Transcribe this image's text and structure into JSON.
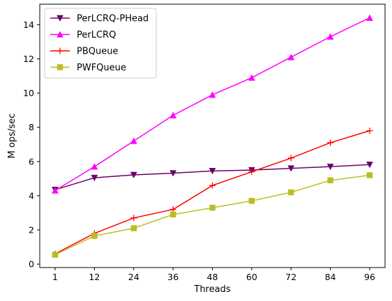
{
  "chart_data": {
    "type": "line",
    "title": "",
    "xlabel": "Threads",
    "ylabel": "M ops/sec",
    "categories": [
      "1",
      "12",
      "24",
      "36",
      "48",
      "60",
      "72",
      "84",
      "96"
    ],
    "ylim": [
      -0.2,
      15.2
    ],
    "yticks": [
      0,
      2,
      4,
      6,
      8,
      10,
      12,
      14
    ],
    "grid": false,
    "legend_position": "top-left",
    "series": [
      {
        "name": "PerLCRQ-PHead",
        "color": "#6b006b",
        "marker": "triangle-down",
        "values": [
          4.35,
          5.05,
          5.22,
          5.32,
          5.45,
          5.5,
          5.6,
          5.7,
          5.82
        ]
      },
      {
        "name": "PerLCRQ",
        "color": "#ff00ff",
        "marker": "triangle-up",
        "values": [
          4.3,
          5.7,
          7.2,
          8.7,
          9.9,
          10.9,
          12.1,
          13.3,
          14.4
        ]
      },
      {
        "name": "PBQueue",
        "color": "#ff0000",
        "marker": "plus",
        "values": [
          0.6,
          1.8,
          2.7,
          3.2,
          4.6,
          5.4,
          6.2,
          7.1,
          7.8
        ]
      },
      {
        "name": "PWFQueue",
        "color": "#bcbd22",
        "marker": "square-dot",
        "values": [
          0.55,
          1.65,
          2.1,
          2.9,
          3.3,
          3.7,
          4.2,
          4.9,
          5.2
        ]
      }
    ]
  }
}
